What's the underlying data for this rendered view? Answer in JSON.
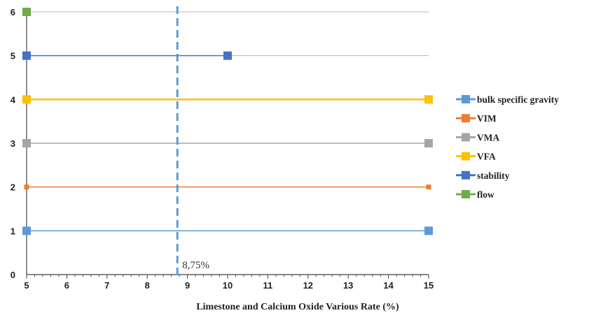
{
  "chart_data": {
    "type": "line",
    "xlabel": "Limestone and Calcium Oxide Various Rate (%)",
    "ylabel": "",
    "title": "",
    "xlim": [
      5,
      15
    ],
    "ylim": [
      0,
      6
    ],
    "x_ticks": [
      "5",
      "6",
      "7",
      "8",
      "9",
      "10",
      "11",
      "12",
      "13",
      "14",
      "15"
    ],
    "y_ticks": [
      "0",
      "1",
      "2",
      "3",
      "4",
      "5",
      "6"
    ],
    "grid": "horizontal",
    "legend_position": "right",
    "series": [
      {
        "name": "bulk specific gravity",
        "color": "#5b9bd5",
        "x": [
          5,
          15
        ],
        "y": [
          1,
          1
        ],
        "marker": "square"
      },
      {
        "name": "VIM",
        "color": "#ed7d31",
        "x": [
          5,
          15
        ],
        "y": [
          2,
          2
        ],
        "marker": "square"
      },
      {
        "name": "VMA",
        "color": "#a5a5a5",
        "x": [
          5,
          15
        ],
        "y": [
          3,
          3
        ],
        "marker": "square"
      },
      {
        "name": "VFA",
        "color": "#ffc000",
        "x": [
          5,
          15
        ],
        "y": [
          4,
          4
        ],
        "marker": "square"
      },
      {
        "name": "stability",
        "color": "#4472c4",
        "x": [
          5,
          10
        ],
        "y": [
          5,
          5
        ],
        "marker": "square"
      },
      {
        "name": "flow",
        "color": "#70ad47",
        "x": [
          5
        ],
        "y": [
          6
        ],
        "marker": "square"
      }
    ],
    "reference_line": {
      "x": 8.75,
      "label": "8,75%",
      "color": "#5b9bd5",
      "style": "dashed"
    }
  }
}
